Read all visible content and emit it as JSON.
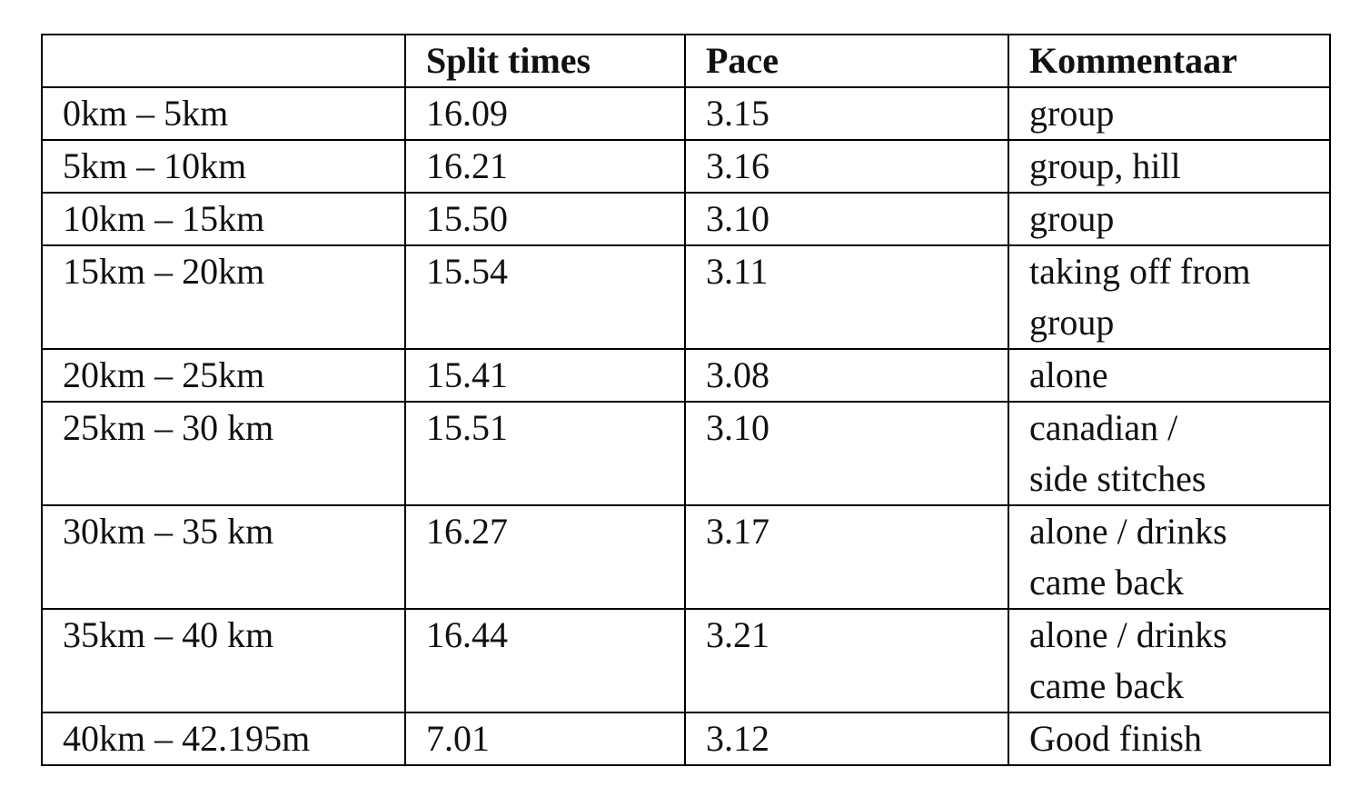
{
  "table": {
    "header": [
      "",
      "Split times",
      "Pace",
      "Kommentaar"
    ],
    "rows": [
      [
        "0km – 5km",
        "16.09",
        "3.15",
        [
          "group"
        ]
      ],
      [
        "5km – 10km",
        "16.21",
        "3.16",
        [
          "group, hill"
        ]
      ],
      [
        "10km – 15km",
        "15.50",
        "3.10",
        [
          "group"
        ]
      ],
      [
        "15km – 20km",
        "15.54",
        "3.11",
        [
          "taking off from",
          "group"
        ]
      ],
      [
        "20km – 25km",
        "15.41",
        "3.08",
        [
          "alone"
        ]
      ],
      [
        "25km – 30 km",
        "15.51",
        "3.10",
        [
          "canadian /",
          "side stitches"
        ]
      ],
      [
        "30km – 35 km",
        "16.27",
        "3.17",
        [
          "alone / drinks",
          "came back"
        ]
      ],
      [
        "35km – 40 km",
        "16.44",
        "3.21",
        [
          "alone / drinks",
          "came back"
        ]
      ],
      [
        "40km – 42.195m",
        "7.01",
        "3.12",
        [
          "Good finish"
        ]
      ]
    ]
  }
}
